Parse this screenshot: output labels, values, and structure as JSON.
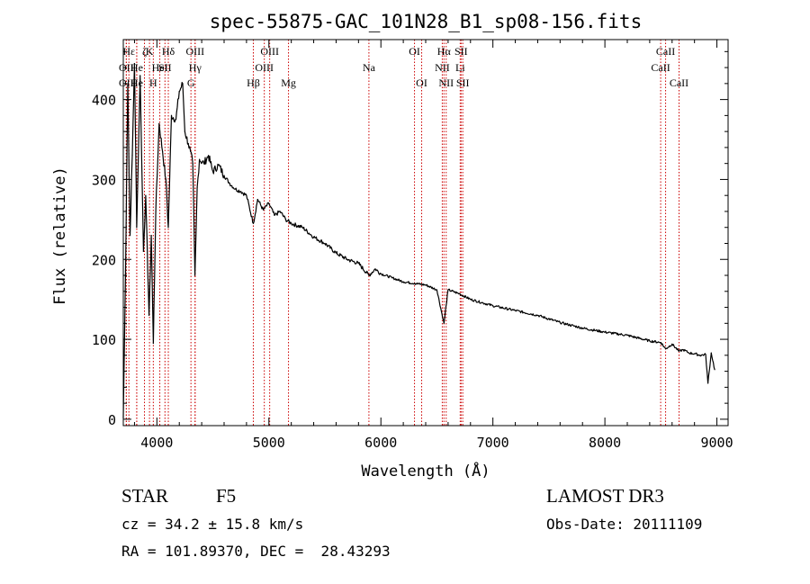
{
  "chart_data": {
    "type": "line",
    "title": "spec-55875-GAC_101N28_B1_sp08-156.fits",
    "xlabel": "Wavelength (Å)",
    "ylabel": "Flux (relative)",
    "xlim": [
      3700,
      9100
    ],
    "ylim": [
      -8,
      475
    ],
    "xticks": [
      4000,
      5000,
      6000,
      7000,
      8000,
      9000
    ],
    "yticks": [
      0,
      100,
      200,
      300,
      400
    ],
    "grid": false,
    "series": [
      {
        "name": "spectrum",
        "x": [
          3700,
          3720,
          3740,
          3760,
          3780,
          3800,
          3820,
          3850,
          3880,
          3900,
          3930,
          3950,
          3968,
          3990,
          4020,
          4050,
          4080,
          4102,
          4130,
          4170,
          4200,
          4230,
          4250,
          4280,
          4300,
          4320,
          4340,
          4360,
          4380,
          4420,
          4460,
          4500,
          4550,
          4600,
          4650,
          4700,
          4750,
          4800,
          4861,
          4900,
          4950,
          5000,
          5050,
          5100,
          5150,
          5200,
          5300,
          5400,
          5500,
          5600,
          5700,
          5800,
          5893,
          5950,
          6000,
          6100,
          6200,
          6300,
          6400,
          6500,
          6563,
          6600,
          6700,
          6800,
          6900,
          7000,
          7200,
          7400,
          7600,
          7800,
          8000,
          8200,
          8400,
          8500,
          8542,
          8600,
          8662,
          8700,
          8750,
          8800,
          8850,
          8900,
          8920,
          8950,
          8980
        ],
        "values": [
          2,
          185,
          420,
          230,
          330,
          445,
          240,
          430,
          210,
          280,
          130,
          230,
          95,
          260,
          370,
          335,
          300,
          240,
          380,
          375,
          410,
          420,
          360,
          345,
          335,
          320,
          180,
          290,
          325,
          320,
          330,
          310,
          318,
          305,
          295,
          288,
          285,
          280,
          245,
          275,
          262,
          270,
          255,
          260,
          250,
          245,
          240,
          228,
          220,
          208,
          200,
          195,
          180,
          188,
          182,
          177,
          172,
          170,
          168,
          162,
          120,
          162,
          157,
          150,
          146,
          142,
          136,
          130,
          121,
          114,
          109,
          105,
          98,
          96,
          88,
          94,
          85,
          87,
          83,
          82,
          80,
          81,
          45,
          83,
          62
        ]
      }
    ],
    "lines": [
      {
        "wl": 3750,
        "label": "Hε",
        "row": 0
      },
      {
        "wl": 3727,
        "label": "OII",
        "row": 1
      },
      {
        "wl": 3727,
        "label": "OII",
        "row": 2
      },
      {
        "wl": 3820,
        "label": "He",
        "row": 1
      },
      {
        "wl": 3820,
        "label": "He",
        "row": 2
      },
      {
        "wl": 3889,
        "label": "ζ",
        "row": 0
      },
      {
        "wl": 3934,
        "label": "K",
        "row": 0
      },
      {
        "wl": 3968,
        "label": "H",
        "row": 2
      },
      {
        "wl": 4026,
        "label": "HeI",
        "row": 1
      },
      {
        "wl": 4072,
        "label": "SII",
        "row": 1
      },
      {
        "wl": 4102,
        "label": "Hδ",
        "row": 0
      },
      {
        "wl": 4341,
        "label": "OIII",
        "row": 0
      },
      {
        "wl": 4341,
        "label": "Hγ",
        "row": 1
      },
      {
        "wl": 4304,
        "label": "G",
        "row": 2
      },
      {
        "wl": 4861,
        "label": "Hβ",
        "row": 2
      },
      {
        "wl": 4959,
        "label": "OIII",
        "row": 1
      },
      {
        "wl": 5007,
        "label": "OIII",
        "row": 0
      },
      {
        "wl": 5175,
        "label": "Mg",
        "row": 2
      },
      {
        "wl": 5893,
        "label": "Na",
        "row": 1
      },
      {
        "wl": 6300,
        "label": "OI",
        "row": 0
      },
      {
        "wl": 6364,
        "label": "OI",
        "row": 2
      },
      {
        "wl": 6563,
        "label": "Hα",
        "row": 0
      },
      {
        "wl": 6548,
        "label": "NII",
        "row": 1
      },
      {
        "wl": 6583,
        "label": "NII",
        "row": 2
      },
      {
        "wl": 6716,
        "label": "SII",
        "row": 0
      },
      {
        "wl": 6708,
        "label": "Li",
        "row": 1
      },
      {
        "wl": 6731,
        "label": "SII",
        "row": 2
      },
      {
        "wl": 8498,
        "label": "CaII",
        "row": 1
      },
      {
        "wl": 8542,
        "label": "CaII",
        "row": 0
      },
      {
        "wl": 8662,
        "label": "CaII",
        "row": 2
      }
    ]
  },
  "info": {
    "object_type": "STAR",
    "subclass": "F5",
    "cz": "cz = 34.2 ± 15.8 km/s",
    "coords": "RA = 101.89370, DEC =  28.43293",
    "survey": "LAMOST DR3",
    "obs_date": "Obs-Date: 20111109"
  },
  "colors": {
    "line": "#000000",
    "marker": "#cc0000"
  }
}
